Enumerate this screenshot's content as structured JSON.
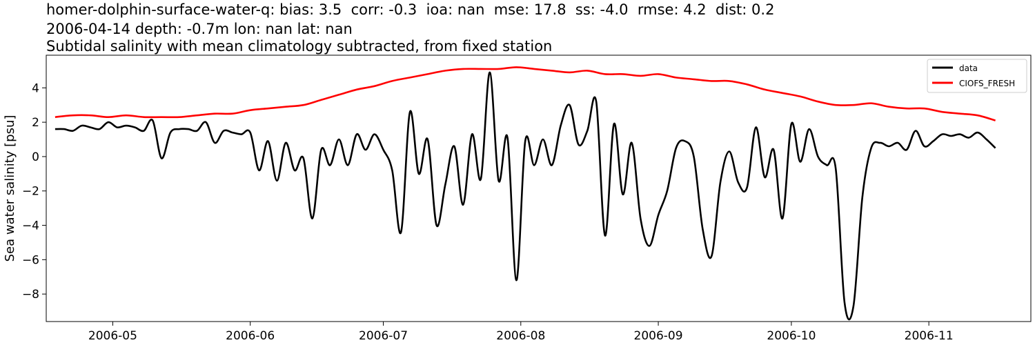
{
  "chart_data": {
    "type": "line",
    "title": [
      "homer-dolphin-surface-water-q: bias: 3.5  corr: -0.3  ioa: nan  mse: 17.8  ss: -4.0  rmse: 4.2  dist: 0.2",
      "2006-04-14 depth: -0.7m lon: nan lat: nan",
      "Subtidal salinity with mean climatology subtracted, from fixed station"
    ],
    "xlabel": "",
    "ylabel": "Sea water salinity [psu]",
    "x_ticks": [
      "2006-05",
      "2006-06",
      "2006-07",
      "2006-08",
      "2006-09",
      "2006-10",
      "2006-11"
    ],
    "x_tick_dates": [
      "2006-05-01",
      "2006-06-01",
      "2006-07-01",
      "2006-08-01",
      "2006-09-01",
      "2006-10-01",
      "2006-11-01"
    ],
    "y_ticks": [
      4,
      2,
      0,
      -2,
      -4,
      -6,
      -8
    ],
    "y_tick_labels": [
      "4",
      "2",
      "0",
      "−2",
      "−4",
      "−6",
      "−8"
    ],
    "xlim": [
      "2006-04-16",
      "2006-11-24"
    ],
    "ylim": [
      -9.6,
      5.9
    ],
    "grid": false,
    "legend": {
      "placement": "top-right"
    },
    "series": [
      {
        "name": "data",
        "color": "#000000",
        "x": [
          "2006-04-18",
          "2006-04-20",
          "2006-04-22",
          "2006-04-24",
          "2006-04-26",
          "2006-04-28",
          "2006-04-30",
          "2006-05-02",
          "2006-05-04",
          "2006-05-06",
          "2006-05-08",
          "2006-05-10",
          "2006-05-12",
          "2006-05-14",
          "2006-05-16",
          "2006-05-18",
          "2006-05-20",
          "2006-05-22",
          "2006-05-24",
          "2006-05-26",
          "2006-05-28",
          "2006-05-30",
          "2006-06-01",
          "2006-06-03",
          "2006-06-05",
          "2006-06-07",
          "2006-06-09",
          "2006-06-11",
          "2006-06-13",
          "2006-06-15",
          "2006-06-17",
          "2006-06-19",
          "2006-06-21",
          "2006-06-23",
          "2006-06-25",
          "2006-06-27",
          "2006-06-29",
          "2006-07-01",
          "2006-07-03",
          "2006-07-05",
          "2006-07-07",
          "2006-07-09",
          "2006-07-11",
          "2006-07-13",
          "2006-07-15",
          "2006-07-17",
          "2006-07-19",
          "2006-07-21",
          "2006-07-23",
          "2006-07-25",
          "2006-07-27",
          "2006-07-29",
          "2006-07-31",
          "2006-08-02",
          "2006-08-04",
          "2006-08-06",
          "2006-08-08",
          "2006-08-10",
          "2006-08-12",
          "2006-08-14",
          "2006-08-16",
          "2006-08-18",
          "2006-08-20",
          "2006-08-22",
          "2006-08-24",
          "2006-08-26",
          "2006-08-28",
          "2006-08-30",
          "2006-09-01",
          "2006-09-03",
          "2006-09-05",
          "2006-09-07",
          "2006-09-09",
          "2006-09-11",
          "2006-09-13",
          "2006-09-15",
          "2006-09-17",
          "2006-09-19",
          "2006-09-21",
          "2006-09-23",
          "2006-09-25",
          "2006-09-27",
          "2006-09-29",
          "2006-10-01",
          "2006-10-03",
          "2006-10-05",
          "2006-10-07",
          "2006-10-09",
          "2006-10-11",
          "2006-10-13",
          "2006-10-15",
          "2006-10-17",
          "2006-10-19",
          "2006-10-21",
          "2006-10-23",
          "2006-10-25",
          "2006-10-27",
          "2006-10-29",
          "2006-10-31",
          "2006-11-02",
          "2006-11-04",
          "2006-11-06",
          "2006-11-08",
          "2006-11-10",
          "2006-11-12",
          "2006-11-14",
          "2006-11-16"
        ],
        "y": [
          1.6,
          1.6,
          1.5,
          1.8,
          1.7,
          1.6,
          2.0,
          1.7,
          1.8,
          1.7,
          1.5,
          2.1,
          -0.1,
          1.4,
          1.6,
          1.6,
          1.5,
          2.0,
          0.8,
          1.5,
          1.4,
          1.3,
          1.4,
          -0.8,
          0.9,
          -1.4,
          0.8,
          -0.8,
          -0.1,
          -3.6,
          0.4,
          -0.5,
          1.0,
          -0.5,
          1.3,
          0.4,
          1.3,
          0.4,
          -0.8,
          -4.4,
          2.6,
          -1.0,
          1.0,
          -4.0,
          -1.6,
          0.6,
          -2.8,
          1.3,
          -1.3,
          4.9,
          -1.4,
          1.1,
          -7.2,
          0.9,
          -0.5,
          1.0,
          -0.5,
          1.8,
          3.0,
          0.7,
          1.5,
          3.2,
          -4.6,
          1.9,
          -2.2,
          0.8,
          -3.6,
          -5.2,
          -3.4,
          -2.0,
          0.5,
          0.9,
          0.0,
          -4.2,
          -5.8,
          -1.5,
          0.3,
          -1.5,
          -1.8,
          1.7,
          -1.2,
          0.4,
          -3.6,
          1.9,
          -0.3,
          1.6,
          0.0,
          -0.5,
          -0.7,
          -8.5,
          -8.7,
          -2.4,
          0.5,
          0.8,
          0.6,
          0.8,
          0.4,
          1.5,
          0.6,
          0.9,
          1.3,
          1.2,
          1.3,
          1.1,
          1.4,
          1.0,
          0.5
        ]
      },
      {
        "name": "CIOFS_FRESH",
        "color": "#ff0000",
        "x": [
          "2006-04-18",
          "2006-04-22",
          "2006-04-26",
          "2006-04-30",
          "2006-05-04",
          "2006-05-08",
          "2006-05-12",
          "2006-05-16",
          "2006-05-20",
          "2006-05-24",
          "2006-05-28",
          "2006-06-01",
          "2006-06-05",
          "2006-06-09",
          "2006-06-13",
          "2006-06-17",
          "2006-06-21",
          "2006-06-25",
          "2006-06-29",
          "2006-07-03",
          "2006-07-07",
          "2006-07-11",
          "2006-07-15",
          "2006-07-19",
          "2006-07-23",
          "2006-07-27",
          "2006-07-31",
          "2006-08-04",
          "2006-08-08",
          "2006-08-12",
          "2006-08-16",
          "2006-08-20",
          "2006-08-24",
          "2006-08-28",
          "2006-09-01",
          "2006-09-05",
          "2006-09-09",
          "2006-09-13",
          "2006-09-17",
          "2006-09-21",
          "2006-09-25",
          "2006-09-29",
          "2006-10-03",
          "2006-10-07",
          "2006-10-11",
          "2006-10-15",
          "2006-10-19",
          "2006-10-23",
          "2006-10-27",
          "2006-10-31",
          "2006-11-04",
          "2006-11-08",
          "2006-11-12",
          "2006-11-16"
        ],
        "y": [
          2.3,
          2.4,
          2.4,
          2.3,
          2.4,
          2.3,
          2.3,
          2.3,
          2.4,
          2.5,
          2.5,
          2.7,
          2.8,
          2.9,
          3.0,
          3.3,
          3.6,
          3.9,
          4.1,
          4.4,
          4.6,
          4.8,
          5.0,
          5.1,
          5.1,
          5.1,
          5.2,
          5.1,
          5.0,
          4.9,
          5.0,
          4.8,
          4.8,
          4.7,
          4.8,
          4.6,
          4.5,
          4.4,
          4.4,
          4.2,
          3.9,
          3.7,
          3.5,
          3.2,
          3.0,
          3.0,
          3.1,
          2.9,
          2.8,
          2.8,
          2.6,
          2.5,
          2.4,
          2.1
        ]
      }
    ]
  }
}
